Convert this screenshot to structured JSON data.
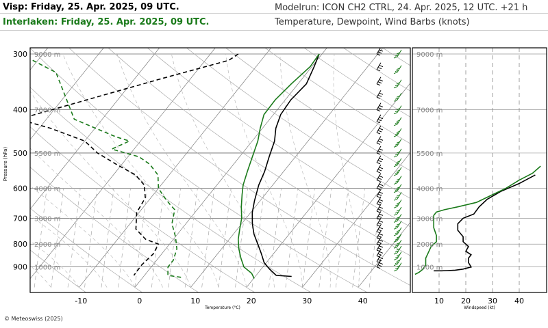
{
  "header": {
    "station_line": "Visp: Friday, 25. Apr. 2025, 09 UTC.",
    "station_line_2": "Interlaken: Friday, 25. Apr. 2025, 09 UTC.",
    "model_run": "Modelrun: ICON CH2 CTRL, 24. Apr. 2025, 12 UTC. +21 h",
    "description": "Temperature, Dewpoint, Wind Barbs (knots)"
  },
  "footer": {
    "copyright": "© Meteoswiss (2025)"
  },
  "colors": {
    "visp": "#000000",
    "interlaken": "#1a7a1a",
    "grid": "#999999"
  },
  "chart_data": [
    {
      "type": "line",
      "name": "skew-t",
      "xlabel": "Temperature (°C)",
      "ylabel": "Pressure (hPa)",
      "x_ticks": [
        -10,
        0,
        10,
        20,
        30,
        40
      ],
      "y_ticks": [
        300,
        400,
        500,
        600,
        700,
        800,
        900
      ],
      "height_labels": [
        "9000 m",
        "7000 m",
        "5500 m",
        "4000 m",
        "3000 m",
        "2000 m",
        "1000 m"
      ],
      "height_pressures": [
        300,
        400,
        500,
        600,
        700,
        800,
        900
      ],
      "series": [
        {
          "name": "Visp temperature",
          "color": "#000000",
          "dash": "solid",
          "points": [
            [
              -0.5,
              300
            ],
            [
              0.4,
              320
            ],
            [
              1.5,
              350
            ],
            [
              1.0,
              380
            ],
            [
              1.3,
              410
            ],
            [
              2.4,
              440
            ],
            [
              4.0,
              470
            ],
            [
              5.3,
              510
            ],
            [
              6.6,
              550
            ],
            [
              7.5,
              590
            ],
            [
              9.0,
              640
            ],
            [
              10.3,
              680
            ],
            [
              11.9,
              720
            ],
            [
              13.7,
              760
            ],
            [
              15.8,
              800
            ],
            [
              17.8,
              840
            ],
            [
              19.6,
              880
            ],
            [
              21.5,
              910
            ],
            [
              23.6,
              940
            ],
            [
              26.5,
              945
            ]
          ]
        },
        {
          "name": "Interlaken temperature",
          "color": "#1a7a1a",
          "dash": "solid",
          "points": [
            [
              -0.5,
              300
            ],
            [
              -0.3,
              320
            ],
            [
              -1.2,
              350
            ],
            [
              -1.8,
              380
            ],
            [
              -1.7,
              410
            ],
            [
              -0.4,
              440
            ],
            [
              1.0,
              470
            ],
            [
              2.3,
              510
            ],
            [
              3.5,
              550
            ],
            [
              4.7,
              590
            ],
            [
              5.9,
              620
            ],
            [
              7.5,
              660
            ],
            [
              9.2,
              700
            ],
            [
              10.4,
              740
            ],
            [
              11.6,
              780
            ],
            [
              13.1,
              820
            ],
            [
              14.8,
              860
            ],
            [
              16.6,
              900
            ],
            [
              18.9,
              930
            ],
            [
              20.1,
              955
            ]
          ]
        },
        {
          "name": "Visp dewpoint",
          "color": "#000000",
          "dash": "6,4",
          "points": [
            [
              -15,
              300
            ],
            [
              -15.8,
              310
            ],
            [
              -25,
              340
            ],
            [
              -45,
              420
            ],
            [
              -38,
              440
            ],
            [
              -30,
              470
            ],
            [
              -26,
              500
            ],
            [
              -21,
              530
            ],
            [
              -16,
              560
            ],
            [
              -13,
              590
            ],
            [
              -11,
              630
            ],
            [
              -10.4,
              680
            ],
            [
              -8.2,
              740
            ],
            [
              -5,
              780
            ],
            [
              -2,
              800
            ],
            [
              -1.5,
              840
            ],
            [
              -2,
              890
            ],
            [
              -1.9,
              940
            ]
          ]
        },
        {
          "name": "Interlaken dewpoint",
          "color": "#1a7a1a",
          "dash": "6,4",
          "points": [
            [
              -54,
              300
            ],
            [
              -45,
              330
            ],
            [
              -35,
              420
            ],
            [
              -25,
              460
            ],
            [
              -22,
              470
            ],
            [
              -24,
              490
            ],
            [
              -18,
              510
            ],
            [
              -15,
              530
            ],
            [
              -12,
              560
            ],
            [
              -10,
              600
            ],
            [
              -7.5,
              630
            ],
            [
              -5.8,
              650
            ],
            [
              -4,
              670
            ],
            [
              -2.5,
              720
            ],
            [
              0,
              770
            ],
            [
              2,
              820
            ],
            [
              3,
              870
            ],
            [
              3,
              900
            ],
            [
              4.2,
              940
            ],
            [
              7,
              950
            ]
          ]
        }
      ]
    },
    {
      "type": "line",
      "name": "wind-speed-profile",
      "xlabel": "Windspeed (kt)",
      "x_ticks": [
        10,
        20,
        30,
        40
      ],
      "xlim": [
        0,
        45
      ],
      "height_labels": [
        "9000 m",
        "7000 m",
        "5500 m",
        "4000 m",
        "3000 m",
        "2000 m",
        "1000 m"
      ],
      "series": [
        {
          "name": "Visp wind speed",
          "color": "#000000",
          "points": [
            [
              46,
              560
            ],
            [
              40,
              585
            ],
            [
              33,
              610
            ],
            [
              28,
              635
            ],
            [
              25,
              660
            ],
            [
              23,
              685
            ],
            [
              19,
              700
            ],
            [
              17,
              720
            ],
            [
              17,
              745
            ],
            [
              19,
              770
            ],
            [
              19,
              790
            ],
            [
              21,
              810
            ],
            [
              20,
              830
            ],
            [
              22,
              845
            ],
            [
              21,
              860
            ],
            [
              21,
              880
            ],
            [
              22,
              900
            ],
            [
              19,
              910
            ],
            [
              16,
              915
            ],
            [
              13,
              917
            ],
            [
              11,
              918
            ],
            [
              8,
              918
            ]
          ]
        },
        {
          "name": "Interlaken wind speed",
          "color": "#1a7a1a",
          "points": [
            [
              48,
              535
            ],
            [
              45,
              555
            ],
            [
              40,
              575
            ],
            [
              35,
              600
            ],
            [
              30,
              620
            ],
            [
              24,
              645
            ],
            [
              17,
              660
            ],
            [
              12,
              670
            ],
            [
              9,
              678
            ],
            [
              8,
              690
            ],
            [
              8,
              710
            ],
            [
              8,
              735
            ],
            [
              9,
              765
            ],
            [
              9,
              790
            ],
            [
              7,
              810
            ],
            [
              6,
              835
            ],
            [
              5,
              860
            ],
            [
              5,
              890
            ],
            [
              4,
              910
            ],
            [
              2.5,
              925
            ],
            [
              1,
              935
            ]
          ]
        }
      ]
    }
  ]
}
